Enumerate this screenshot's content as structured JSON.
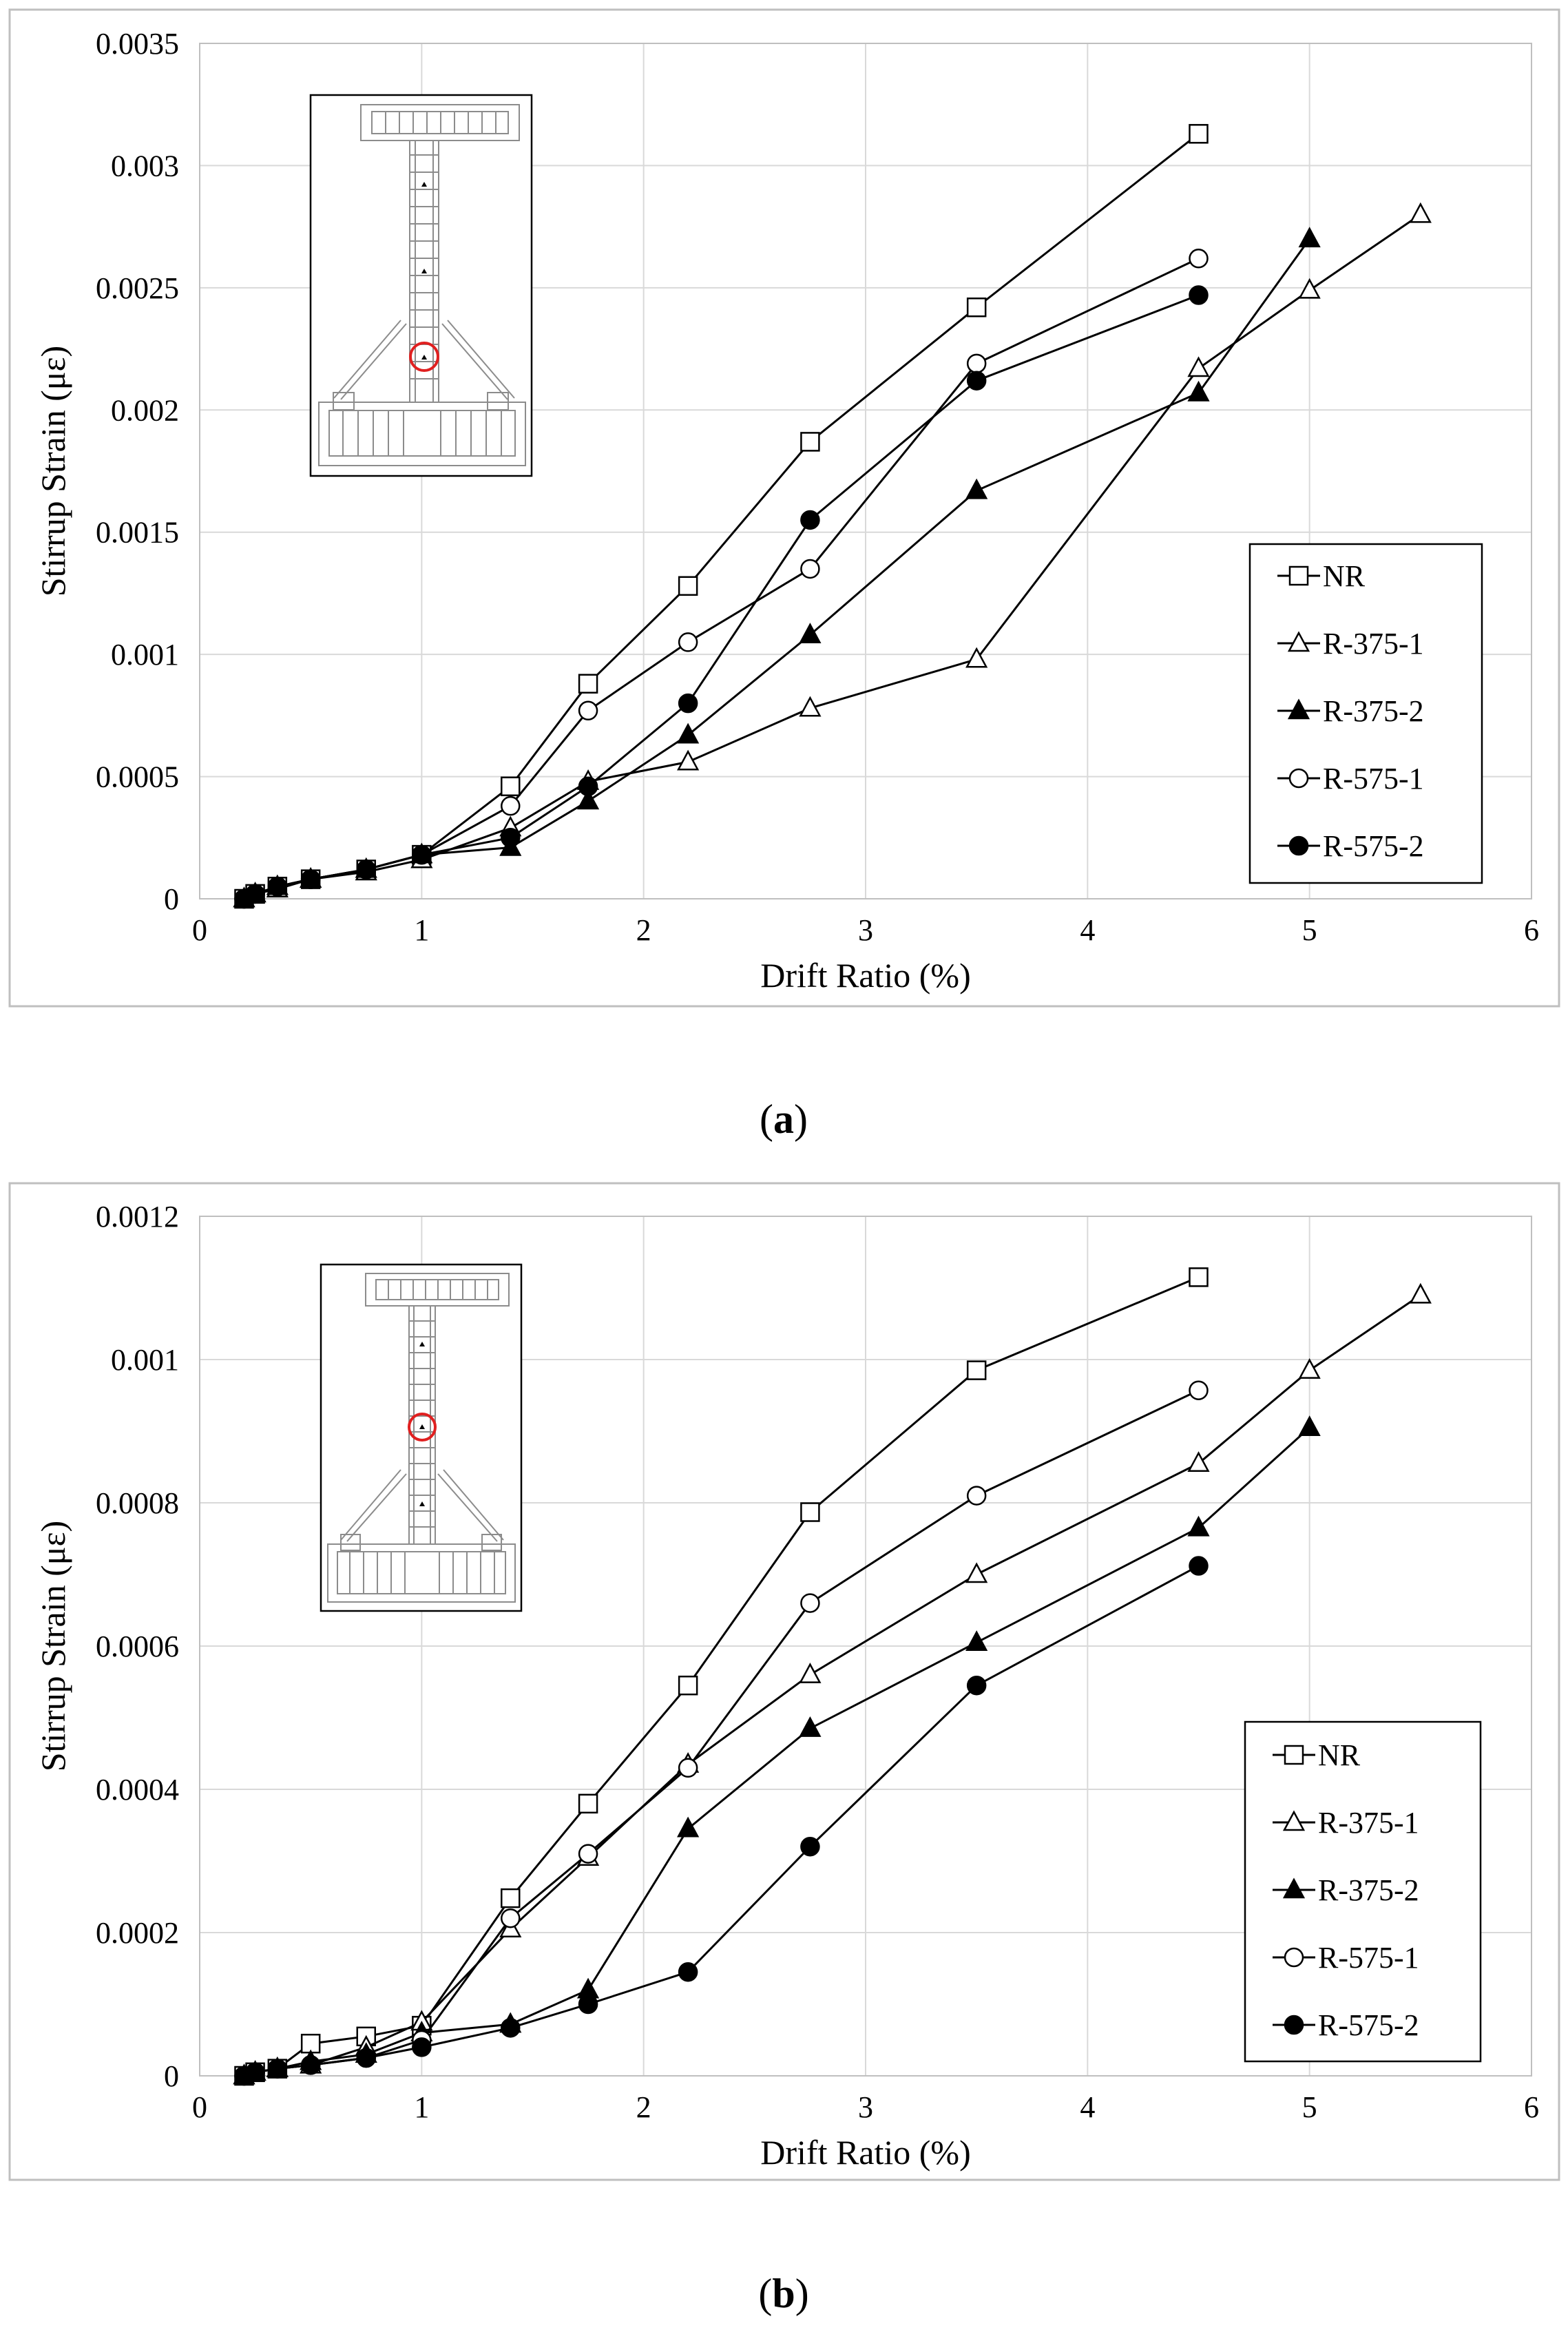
{
  "figure": {
    "panels": [
      {
        "label_open": "(",
        "label_letter": "a",
        "label_close": ")"
      },
      {
        "label_open": "(",
        "label_letter": "b",
        "label_close": ")"
      }
    ]
  },
  "legend": {
    "entries": [
      "NR",
      "R-375-1",
      "R-375-2",
      "R-575-1",
      "R-575-2"
    ]
  },
  "colors": {
    "line": "#000000",
    "grid": "#d9d9d9",
    "frame": "#bfbfbf",
    "marker_open_fill": "#ffffff",
    "marker_solid_fill": "#000000",
    "highlight_circle": "#e02020",
    "inset_steel": "#8c8c8c"
  },
  "chart_data": [
    {
      "type": "line",
      "panel": "a",
      "xlabel": "Drift Ratio (%)",
      "ylabel": "Stirrup Strain (με)",
      "xlim": [
        0,
        6
      ],
      "ylim": [
        0,
        0.0035
      ],
      "xticks": [
        0,
        1,
        2,
        3,
        4,
        5,
        6
      ],
      "yticks": [
        0,
        0.0005,
        0.001,
        0.0015,
        0.002,
        0.0025,
        0.003,
        0.0035
      ],
      "ytick_labels": [
        "0",
        "0.0005",
        "0.001",
        "0.0015",
        "0.002",
        "0.0025",
        "0.003",
        "0.0035"
      ],
      "grid": true,
      "legend_position": "right",
      "series": [
        {
          "name": "NR",
          "marker": "square",
          "filled": false,
          "x": [
            0.2,
            0.25,
            0.35,
            0.5,
            0.75,
            1.0,
            1.4,
            1.75,
            2.2,
            2.75,
            3.5,
            4.5
          ],
          "y": [
            0.0,
            2e-05,
            5e-05,
            8e-05,
            0.00012,
            0.00018,
            0.00046,
            0.00088,
            0.00128,
            0.00187,
            0.00242,
            0.00313
          ]
        },
        {
          "name": "R-375-1",
          "marker": "triangle",
          "filled": false,
          "x": [
            0.2,
            0.25,
            0.35,
            0.5,
            0.75,
            1.0,
            1.4,
            1.75,
            2.2,
            2.75,
            3.5,
            4.5,
            5.0,
            5.5
          ],
          "y": [
            0.0,
            2e-05,
            4e-05,
            8e-05,
            0.00011,
            0.00016,
            0.00029,
            0.00048,
            0.00056,
            0.00078,
            0.00098,
            0.00217,
            0.00249,
            0.0028
          ]
        },
        {
          "name": "R-375-2",
          "marker": "triangle",
          "filled": true,
          "x": [
            0.2,
            0.25,
            0.35,
            0.5,
            0.75,
            1.0,
            1.4,
            1.75,
            2.2,
            2.75,
            3.5,
            4.5,
            5.0
          ],
          "y": [
            0.0,
            2e-05,
            5e-05,
            8e-05,
            0.00012,
            0.00018,
            0.00021,
            0.0004,
            0.00067,
            0.00108,
            0.00167,
            0.00207,
            0.0027
          ]
        },
        {
          "name": "R-575-1",
          "marker": "circle",
          "filled": false,
          "x": [
            0.2,
            0.25,
            0.35,
            0.5,
            0.75,
            1.0,
            1.4,
            1.75,
            2.2,
            2.75,
            3.5,
            4.5
          ],
          "y": [
            0.0,
            2e-05,
            5e-05,
            8e-05,
            0.00012,
            0.00018,
            0.00038,
            0.00077,
            0.00105,
            0.00135,
            0.00219,
            0.00262
          ]
        },
        {
          "name": "R-575-2",
          "marker": "circle",
          "filled": true,
          "x": [
            0.2,
            0.25,
            0.35,
            0.5,
            0.75,
            1.0,
            1.4,
            1.75,
            2.2,
            2.75,
            3.5,
            4.5
          ],
          "y": [
            0.0,
            2e-05,
            5e-05,
            8e-05,
            0.00012,
            0.00018,
            0.00025,
            0.00046,
            0.0008,
            0.00155,
            0.00212,
            0.00247
          ]
        }
      ]
    },
    {
      "type": "line",
      "panel": "b",
      "xlabel": "Drift Ratio (%)",
      "ylabel": "Stirrup Strain (με)",
      "xlim": [
        0,
        6
      ],
      "ylim": [
        0,
        0.0012
      ],
      "xticks": [
        0,
        1,
        2,
        3,
        4,
        5,
        6
      ],
      "yticks": [
        0,
        0.0002,
        0.0004,
        0.0006,
        0.0008,
        0.001,
        0.0012
      ],
      "ytick_labels": [
        "0",
        "0.0002",
        "0.0004",
        "0.0006",
        "0.0008",
        "0.001",
        "0.0012"
      ],
      "grid": true,
      "legend_position": "bottom-right",
      "series": [
        {
          "name": "NR",
          "marker": "square",
          "filled": false,
          "x": [
            0.2,
            0.25,
            0.35,
            0.5,
            0.75,
            1.0,
            1.4,
            1.75,
            2.2,
            2.75,
            3.5,
            4.5
          ],
          "y": [
            0.0,
            5e-06,
            1e-05,
            4.5e-05,
            5.5e-05,
            7e-05,
            0.000248,
            0.00038,
            0.000545,
            0.000787,
            0.000985,
            0.001115
          ]
        },
        {
          "name": "R-375-1",
          "marker": "triangle",
          "filled": false,
          "x": [
            0.2,
            0.25,
            0.35,
            0.5,
            0.75,
            1.0,
            1.4,
            1.75,
            2.2,
            2.75,
            3.5,
            4.5,
            5.0,
            5.5
          ],
          "y": [
            0.0,
            5e-06,
            1e-05,
            1.5e-05,
            4e-05,
            7.5e-05,
            0.000205,
            0.000305,
            0.000435,
            0.00056,
            0.0007,
            0.000855,
            0.000985,
            0.00109
          ]
        },
        {
          "name": "R-375-2",
          "marker": "triangle",
          "filled": true,
          "x": [
            0.2,
            0.25,
            0.35,
            0.5,
            0.75,
            1.0,
            1.4,
            1.75,
            2.2,
            2.75,
            3.5,
            4.5,
            5.0
          ],
          "y": [
            0.0,
            5e-06,
            1e-05,
            2e-05,
            3e-05,
            6e-05,
            7.2e-05,
            0.00012,
            0.000345,
            0.000485,
            0.000605,
            0.000765,
            0.000905
          ]
        },
        {
          "name": "R-575-1",
          "marker": "circle",
          "filled": false,
          "x": [
            0.2,
            0.25,
            0.35,
            0.5,
            0.75,
            1.0,
            1.4,
            1.75,
            2.2,
            2.75,
            3.5,
            4.5
          ],
          "y": [
            0.0,
            5e-06,
            1e-05,
            1.5e-05,
            2.5e-05,
            5e-05,
            0.00022,
            0.00031,
            0.00043,
            0.00066,
            0.00081,
            0.000957
          ]
        },
        {
          "name": "R-575-2",
          "marker": "circle",
          "filled": true,
          "x": [
            0.2,
            0.25,
            0.35,
            0.5,
            0.75,
            1.0,
            1.4,
            1.75,
            2.2,
            2.75,
            3.5,
            4.5
          ],
          "y": [
            0.0,
            5e-06,
            1e-05,
            1.5e-05,
            2.5e-05,
            4e-05,
            6.7e-05,
            0.0001,
            0.000145,
            0.00032,
            0.000545,
            0.000712
          ]
        }
      ]
    }
  ]
}
